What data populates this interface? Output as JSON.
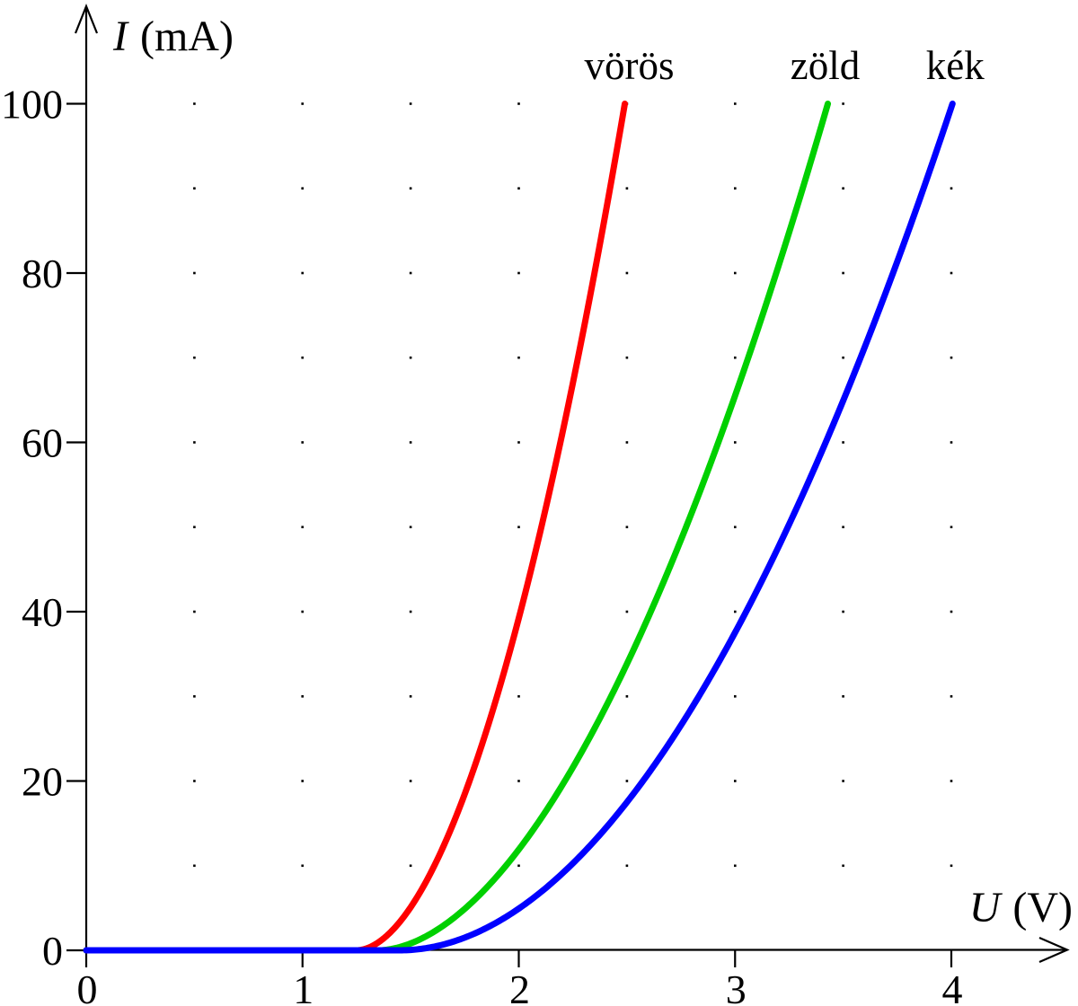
{
  "figure": {
    "background": "#ffffff",
    "axis_color": "#000000",
    "text_color": "#000000",
    "grid_dot_color": "#000000"
  },
  "axes": {
    "x": {
      "var": "U",
      "unit": "(V)",
      "ticks": [
        "0",
        "1",
        "2",
        "3",
        "4"
      ]
    },
    "y": {
      "var": "I",
      "unit": "(mA)",
      "ticks": [
        "0",
        "20",
        "40",
        "60",
        "80",
        "100"
      ]
    }
  },
  "chart_data": {
    "type": "line",
    "title": "",
    "xlabel": "U (V)",
    "ylabel": "I (mA)",
    "xlim": [
      0,
      4.55
    ],
    "ylim": [
      0,
      111
    ],
    "x_ticks": [
      0,
      1,
      2,
      3,
      4
    ],
    "y_ticks": [
      0,
      20,
      40,
      60,
      80,
      100
    ],
    "grid": {
      "style": "dots",
      "x_start": 0.5,
      "x_step": 0.5,
      "x_end": 4.0,
      "y_start": 10,
      "y_step": 10,
      "y_end": 100,
      "color": "#000000"
    },
    "legend_position": "labels-above-curve-tops",
    "series": [
      {
        "name": "vörös",
        "color": "#ff0000",
        "model": {
          "type": "power-threshold",
          "threshold_v": 1.25,
          "k": 67,
          "p": 1.86,
          "i_max_ma": 100
        },
        "points": [
          [
            0,
            0
          ],
          [
            1.0,
            0
          ],
          [
            1.3,
            0.5
          ],
          [
            1.52,
            5
          ],
          [
            1.61,
            10
          ],
          [
            1.76,
            20
          ],
          [
            1.88,
            30
          ],
          [
            1.98,
            40
          ],
          [
            2.07,
            50
          ],
          [
            2.16,
            60
          ],
          [
            2.25,
            70
          ],
          [
            2.33,
            80
          ],
          [
            2.41,
            90
          ],
          [
            2.49,
            100
          ]
        ]
      },
      {
        "name": "zöld",
        "color": "#00d000",
        "model": {
          "type": "power-threshold",
          "threshold_v": 1.35,
          "k": 26.2,
          "p": 1.83,
          "i_max_ma": 100
        },
        "points": [
          [
            0,
            0
          ],
          [
            1.1,
            0
          ],
          [
            1.45,
            0.5
          ],
          [
            1.77,
            5
          ],
          [
            1.94,
            10
          ],
          [
            2.19,
            20
          ],
          [
            2.42,
            30
          ],
          [
            2.62,
            40
          ],
          [
            2.79,
            50
          ],
          [
            2.95,
            60
          ],
          [
            3.09,
            70
          ],
          [
            3.22,
            80
          ],
          [
            3.33,
            90
          ],
          [
            3.43,
            100
          ]
        ]
      },
      {
        "name": "kék",
        "color": "#0000ff",
        "model": {
          "type": "power-threshold",
          "threshold_v": 1.45,
          "k": 15.9,
          "p": 1.96,
          "i_max_ma": 100
        },
        "points": [
          [
            0,
            0
          ],
          [
            1.2,
            0
          ],
          [
            1.6,
            0.8
          ],
          [
            2.0,
            5
          ],
          [
            2.24,
            10
          ],
          [
            2.56,
            20
          ],
          [
            2.81,
            30
          ],
          [
            3.02,
            40
          ],
          [
            3.22,
            50
          ],
          [
            3.41,
            60
          ],
          [
            3.57,
            70
          ],
          [
            3.72,
            80
          ],
          [
            3.86,
            90
          ],
          [
            4.0,
            100
          ]
        ]
      }
    ]
  }
}
